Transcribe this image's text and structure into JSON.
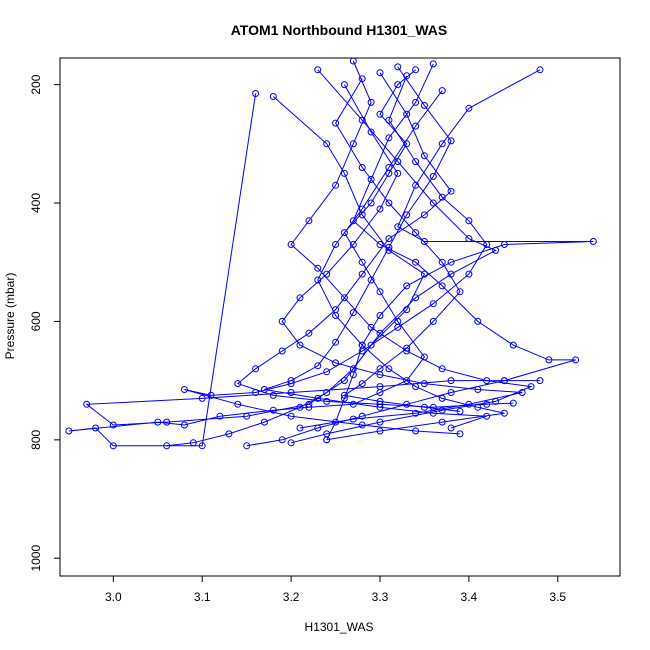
{
  "chart_data": {
    "type": "line",
    "title": "ATOM1 Northbound H1301_WAS",
    "xlabel": "H1301_WAS",
    "ylabel": "Pressure (mbar)",
    "xlim": [
      2.94,
      3.57
    ],
    "ylim": [
      1030,
      155
    ],
    "y_reversed": true,
    "x_ticks": [
      "3.0",
      "3.1",
      "3.2",
      "3.3",
      "3.4",
      "3.5"
    ],
    "y_ticks": [
      "200",
      "400",
      "600",
      "800",
      "1000"
    ],
    "grid": false,
    "legend": "none",
    "series_color": "#0000FF",
    "marker": "open-circle",
    "series": [
      {
        "points": [
          [
            3.16,
            215
          ],
          [
            3.1,
            810
          ],
          [
            3.0,
            810
          ],
          [
            2.98,
            780
          ],
          [
            2.95,
            785
          ],
          [
            3.05,
            770
          ],
          [
            3.08,
            775
          ],
          [
            3.12,
            760
          ],
          [
            3.18,
            750
          ],
          [
            3.22,
            745
          ],
          [
            3.27,
            740
          ],
          [
            3.3,
            720
          ],
          [
            3.33,
            700
          ],
          [
            3.35,
            660
          ],
          [
            3.32,
            600
          ],
          [
            3.3,
            550
          ],
          [
            3.28,
            500
          ],
          [
            3.26,
            450
          ],
          [
            3.29,
            400
          ],
          [
            3.31,
            350
          ],
          [
            3.33,
            300
          ],
          [
            3.3,
            250
          ],
          [
            3.32,
            200
          ],
          [
            3.34,
            175
          ]
        ]
      },
      {
        "points": [
          [
            3.18,
            220
          ],
          [
            3.24,
            300
          ],
          [
            3.26,
            350
          ],
          [
            3.28,
            420
          ],
          [
            3.31,
            480
          ],
          [
            3.35,
            520
          ],
          [
            3.33,
            580
          ],
          [
            3.29,
            640
          ],
          [
            3.26,
            700
          ],
          [
            3.22,
            740
          ],
          [
            3.15,
            760
          ],
          [
            3.06,
            770
          ],
          [
            3.0,
            775
          ],
          [
            2.97,
            740
          ],
          [
            3.1,
            730
          ],
          [
            3.2,
            720
          ],
          [
            3.3,
            710
          ],
          [
            3.38,
            700
          ],
          [
            3.44,
            700
          ],
          [
            3.48,
            700
          ]
        ]
      },
      {
        "points": [
          [
            3.23,
            175
          ],
          [
            3.28,
            260
          ],
          [
            3.32,
            330
          ],
          [
            3.36,
            400
          ],
          [
            3.4,
            460
          ],
          [
            3.43,
            480
          ],
          [
            3.38,
            520
          ],
          [
            3.34,
            560
          ],
          [
            3.3,
            620
          ],
          [
            3.27,
            680
          ],
          [
            3.24,
            720
          ],
          [
            3.21,
            745
          ],
          [
            3.17,
            770
          ],
          [
            3.13,
            790
          ],
          [
            3.09,
            805
          ],
          [
            3.06,
            810
          ]
        ]
      },
      {
        "points": [
          [
            3.36,
            165
          ],
          [
            3.34,
            230
          ],
          [
            3.31,
            290
          ],
          [
            3.29,
            360
          ],
          [
            3.27,
            430
          ],
          [
            3.3,
            470
          ],
          [
            3.34,
            500
          ],
          [
            3.37,
            540
          ],
          [
            3.41,
            600
          ],
          [
            3.45,
            640
          ],
          [
            3.49,
            665
          ],
          [
            3.52,
            665
          ],
          [
            3.44,
            700
          ],
          [
            3.38,
            720
          ],
          [
            3.33,
            740
          ],
          [
            3.28,
            760
          ],
          [
            3.23,
            780
          ],
          [
            3.19,
            800
          ],
          [
            3.15,
            810
          ]
        ]
      },
      {
        "points": [
          [
            3.3,
            180
          ],
          [
            3.33,
            250
          ],
          [
            3.35,
            320
          ],
          [
            3.38,
            380
          ],
          [
            3.35,
            420
          ],
          [
            3.31,
            460
          ],
          [
            3.28,
            520
          ],
          [
            3.25,
            580
          ],
          [
            3.22,
            620
          ],
          [
            3.19,
            650
          ],
          [
            3.16,
            680
          ],
          [
            3.14,
            705
          ],
          [
            3.18,
            725
          ],
          [
            3.24,
            735
          ],
          [
            3.3,
            740
          ],
          [
            3.36,
            745
          ],
          [
            3.42,
            740
          ],
          [
            3.45,
            738
          ]
        ]
      },
      {
        "points": [
          [
            3.48,
            175
          ],
          [
            3.4,
            240
          ],
          [
            3.37,
            300
          ],
          [
            3.34,
            370
          ],
          [
            3.32,
            440
          ],
          [
            3.35,
            465
          ],
          [
            3.54,
            465
          ],
          [
            3.44,
            470
          ],
          [
            3.38,
            500
          ],
          [
            3.33,
            540
          ],
          [
            3.3,
            590
          ],
          [
            3.28,
            640
          ],
          [
            3.27,
            690
          ],
          [
            3.26,
            730
          ],
          [
            3.25,
            770
          ],
          [
            3.24,
            800
          ]
        ]
      },
      {
        "points": [
          [
            3.27,
            160
          ],
          [
            3.29,
            230
          ],
          [
            3.27,
            300
          ],
          [
            3.25,
            370
          ],
          [
            3.22,
            430
          ],
          [
            3.2,
            470
          ],
          [
            3.23,
            510
          ],
          [
            3.26,
            560
          ],
          [
            3.29,
            610
          ],
          [
            3.33,
            650
          ],
          [
            3.37,
            680
          ],
          [
            3.42,
            700
          ],
          [
            3.47,
            710
          ],
          [
            3.43,
            735
          ],
          [
            3.37,
            750
          ],
          [
            3.3,
            770
          ],
          [
            3.24,
            790
          ],
          [
            3.2,
            805
          ]
        ]
      },
      {
        "points": [
          [
            3.33,
            185
          ],
          [
            3.31,
            260
          ],
          [
            3.34,
            330
          ],
          [
            3.37,
            390
          ],
          [
            3.4,
            430
          ],
          [
            3.42,
            470
          ],
          [
            3.4,
            520
          ],
          [
            3.36,
            570
          ],
          [
            3.32,
            610
          ],
          [
            3.28,
            650
          ],
          [
            3.24,
            685
          ],
          [
            3.2,
            705
          ],
          [
            3.16,
            720
          ],
          [
            3.11,
            725
          ],
          [
            3.08,
            715
          ],
          [
            3.14,
            740
          ],
          [
            3.2,
            760
          ],
          [
            3.28,
            775
          ],
          [
            3.34,
            785
          ],
          [
            3.39,
            790
          ]
        ]
      },
      {
        "points": [
          [
            3.26,
            200
          ],
          [
            3.29,
            280
          ],
          [
            3.32,
            350
          ],
          [
            3.3,
            410
          ],
          [
            3.27,
            470
          ],
          [
            3.24,
            520
          ],
          [
            3.21,
            560
          ],
          [
            3.19,
            600
          ],
          [
            3.21,
            640
          ],
          [
            3.25,
            670
          ],
          [
            3.3,
            690
          ],
          [
            3.35,
            705
          ],
          [
            3.41,
            715
          ],
          [
            3.46,
            720
          ],
          [
            3.4,
            740
          ],
          [
            3.34,
            755
          ],
          [
            3.27,
            765
          ],
          [
            3.21,
            780
          ]
        ]
      },
      {
        "points": [
          [
            3.32,
            170
          ],
          [
            3.35,
            235
          ],
          [
            3.38,
            295
          ],
          [
            3.36,
            355
          ],
          [
            3.33,
            420
          ],
          [
            3.31,
            475
          ],
          [
            3.29,
            530
          ],
          [
            3.27,
            585
          ],
          [
            3.25,
            635
          ],
          [
            3.23,
            675
          ],
          [
            3.2,
            700
          ],
          [
            3.17,
            715
          ],
          [
            3.23,
            730
          ],
          [
            3.3,
            745
          ],
          [
            3.36,
            755
          ],
          [
            3.42,
            760
          ],
          [
            3.38,
            780
          ]
        ]
      },
      {
        "points": [
          [
            3.28,
            190
          ],
          [
            3.25,
            265
          ],
          [
            3.28,
            340
          ],
          [
            3.31,
            400
          ],
          [
            3.34,
            450
          ],
          [
            3.37,
            500
          ],
          [
            3.39,
            550
          ],
          [
            3.36,
            600
          ],
          [
            3.33,
            645
          ],
          [
            3.3,
            680
          ],
          [
            3.28,
            705
          ],
          [
            3.26,
            725
          ],
          [
            3.3,
            735
          ],
          [
            3.35,
            745
          ],
          [
            3.39,
            752
          ]
        ]
      },
      {
        "points": [
          [
            3.37,
            210
          ],
          [
            3.34,
            270
          ],
          [
            3.31,
            340
          ],
          [
            3.28,
            410
          ],
          [
            3.25,
            470
          ],
          [
            3.23,
            530
          ],
          [
            3.25,
            590
          ],
          [
            3.28,
            640
          ],
          [
            3.31,
            680
          ],
          [
            3.34,
            710
          ],
          [
            3.37,
            730
          ],
          [
            3.41,
            745
          ],
          [
            3.44,
            755
          ],
          [
            3.37,
            770
          ],
          [
            3.3,
            785
          ],
          [
            3.24,
            800
          ]
        ]
      }
    ]
  }
}
